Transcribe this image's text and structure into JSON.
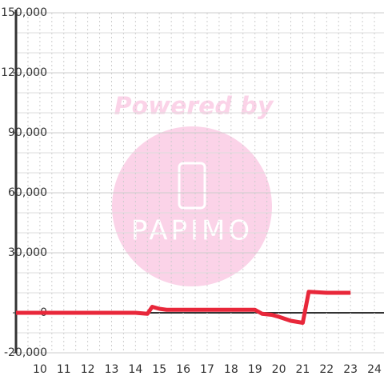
{
  "chart_data": {
    "type": "line",
    "x": [
      9,
      14,
      14.5,
      14.7,
      15,
      15.3,
      19,
      19.3,
      19.7,
      20,
      20.5,
      21,
      21.25,
      22,
      23
    ],
    "series": [
      {
        "color": "#e8273a",
        "values": [
          0,
          0,
          -500,
          3000,
          2000,
          1500,
          1500,
          -500,
          -1000,
          -2000,
          -4000,
          -5000,
          10500,
          10000,
          10000
        ]
      }
    ],
    "xlim": [
      9,
      24.4
    ],
    "xticks": [
      10,
      11,
      12,
      13,
      14,
      15,
      16,
      17,
      18,
      19,
      20,
      21,
      22,
      23,
      24
    ],
    "xminorticks": [
      9.5,
      10.5,
      11.5,
      12.5,
      13.5,
      14.5,
      15.5,
      16.5,
      17.5,
      18.5,
      19.5,
      20.5,
      21.5,
      22.5,
      23.5
    ],
    "ylim": [
      -20000,
      150000
    ],
    "yticks": [
      {
        "value": -20000,
        "label": "-20,000"
      },
      0,
      {
        "value": 30000,
        "label": "30,000"
      },
      {
        "value": 60000,
        "label": "60,000"
      },
      {
        "value": 90000,
        "label": "90,000"
      },
      {
        "value": 120000,
        "label": "120,000"
      },
      {
        "value": 150000,
        "label": "150,000"
      }
    ],
    "yminorticks": [
      -10000,
      10000,
      20000,
      40000,
      50000,
      70000,
      80000,
      100000,
      110000,
      130000,
      140000
    ],
    "grid": true,
    "watermark": [
      "Powered by",
      "PAPIMO"
    ]
  }
}
